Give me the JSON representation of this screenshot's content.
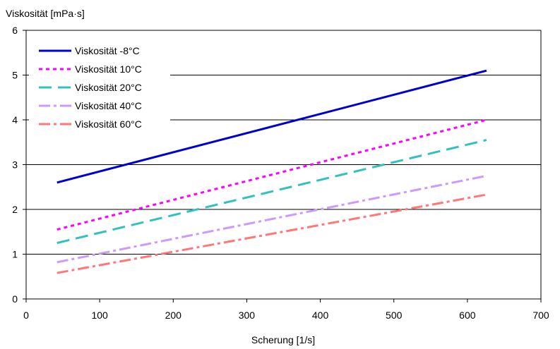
{
  "chart_data": {
    "type": "line",
    "ylabel": "Viskosität [mPa·s]",
    "xlabel": "Scherung [1/s]",
    "xlim": [
      0,
      700
    ],
    "ylim": [
      0,
      6
    ],
    "xticks": [
      "0",
      "100",
      "200",
      "300",
      "400",
      "500",
      "600",
      "700"
    ],
    "yticks": [
      "0",
      "1",
      "2",
      "3",
      "4",
      "5",
      "6"
    ],
    "grid": "horizontal major gridlines",
    "legend_position": "top-left, inside plot area",
    "series": [
      {
        "name": "Viskosität  -8°C",
        "color": "#0000cc",
        "dash": "solid",
        "x": [
          42,
          626
        ],
        "y": [
          2.6,
          5.1
        ]
      },
      {
        "name": "Viskosität 10°C",
        "color": "#ff00ff",
        "dash": "dotted",
        "x": [
          42,
          626
        ],
        "y": [
          1.55,
          4.0
        ]
      },
      {
        "name": "Viskosität 20°C",
        "color": "#33c0c0",
        "dash": "dashed",
        "x": [
          42,
          626
        ],
        "y": [
          1.25,
          3.55
        ]
      },
      {
        "name": "Viskosität 40°C",
        "color": "#cc99ff",
        "dash": "dash-dot",
        "x": [
          42,
          626
        ],
        "y": [
          0.82,
          2.75
        ]
      },
      {
        "name": "Viskosität 60°C",
        "color": "#ff7777",
        "dash": "dash-dot",
        "x": [
          42,
          626
        ],
        "y": [
          0.58,
          2.33
        ]
      }
    ]
  }
}
